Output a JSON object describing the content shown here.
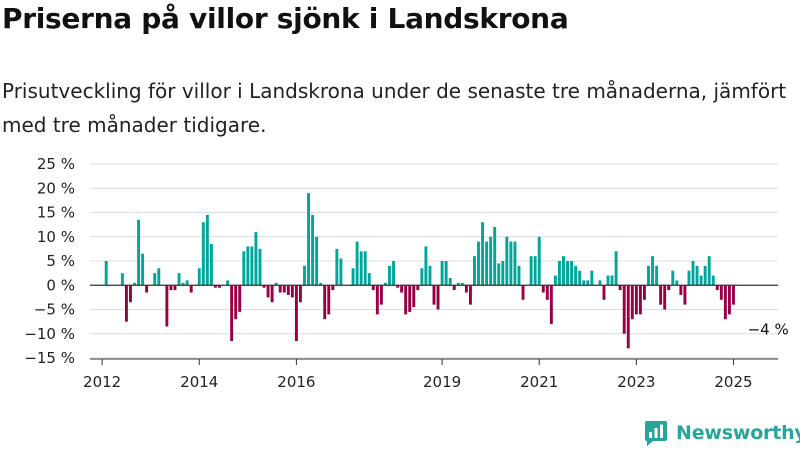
{
  "title": "Priserna på villor sjönk i Landskrona",
  "subtitle": "Prisutveckling för villor i Landskrona under de senaste tre månaderna, jämfört med tre månader tidigare.",
  "brand": {
    "name": "Newsworthy",
    "icon": "newsworthy-logo-icon",
    "color": "#26a69a"
  },
  "colors": {
    "positive": "#00a699",
    "negative": "#990044"
  },
  "chart_data": {
    "type": "bar",
    "title": "Priserna på villor sjönk i Landskrona",
    "subtitle": "Prisutveckling för villor i Landskrona under de senaste tre månaderna, jämfört med tre månader tidigare.",
    "xlabel": "",
    "ylabel": "",
    "ylim": [
      -15,
      25
    ],
    "y_ticks": [
      25,
      20,
      15,
      10,
      5,
      0,
      -5,
      -10,
      -15
    ],
    "y_tick_labels": [
      "25 %",
      "20 %",
      "15 %",
      "10 %",
      "5 %",
      "0 %",
      "−5 %",
      "−10 %",
      "−15 %"
    ],
    "x_ticks": [
      2012,
      2014,
      2016,
      2019,
      2021,
      2023,
      2025
    ],
    "x_tick_labels": [
      "2012",
      "2014",
      "2016",
      "2019",
      "2021",
      "2023",
      "2025"
    ],
    "xlim": [
      "2011-10",
      "2025-12"
    ],
    "grid": true,
    "legend": "none",
    "annotations": [
      {
        "text": "−4 %",
        "x": "2025-04",
        "y": -4
      }
    ],
    "series": [
      {
        "start": "2012-02",
        "frequency": "monthly",
        "values": [
          5,
          null,
          null,
          null,
          2.5,
          -7.5,
          -3.5,
          0.5,
          13.5,
          6.5,
          -1.5,
          null,
          2.5,
          3.5,
          null,
          -8.5,
          -1,
          -1,
          2.5,
          0.5,
          1,
          -1.5,
          null,
          3.5,
          13,
          14.5,
          8.5,
          -0.5,
          -0.5,
          null,
          1,
          -11.5,
          -7,
          -5.5,
          7,
          8,
          8,
          11,
          7.5,
          -0.5,
          -2.5,
          -3.5,
          0.5,
          -1.5,
          -1.5,
          -2,
          -2.5,
          -11.5,
          -3.5,
          4,
          19,
          14.5,
          10,
          0.5,
          -7,
          -6,
          -1,
          7.5,
          5.5,
          null,
          null,
          3.5,
          9,
          7,
          7,
          2.5,
          -1,
          -6,
          -4,
          0.5,
          4,
          5,
          -0.5,
          -1.5,
          -6,
          -5.5,
          -4.5,
          -1,
          3.5,
          8,
          4,
          -4,
          -5,
          5,
          5,
          1.5,
          -1,
          0.5,
          0.5,
          -1.5,
          -4,
          6,
          9,
          13,
          9,
          10,
          12,
          4.5,
          5,
          10,
          9,
          9,
          4,
          -3,
          null,
          6,
          6,
          10,
          -1.5,
          -3,
          -8,
          2,
          5,
          6,
          5,
          5,
          4,
          3,
          1,
          1,
          3,
          null,
          1,
          -3,
          2,
          2,
          7,
          -1,
          -10,
          -13,
          -7,
          -6,
          -6,
          -3,
          4,
          6,
          4,
          -4,
          -5,
          -1,
          3,
          1,
          -2,
          -4,
          3,
          5,
          4,
          2,
          4,
          6,
          2,
          -1,
          -3,
          -7,
          -6,
          -4
        ]
      }
    ]
  }
}
